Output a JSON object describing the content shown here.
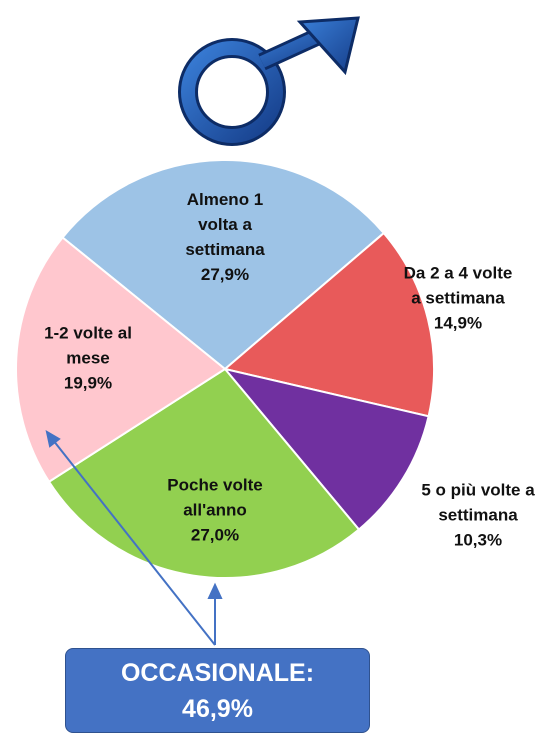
{
  "chart_data": {
    "type": "pie",
    "categories": [
      "Almeno 1 volta a settimana",
      "Da 2 a 4 volte a settimana",
      "5 o più volte a settimana",
      "Poche volte all'anno",
      "1-2 volte al mese"
    ],
    "values": [
      27.9,
      14.9,
      10.3,
      27.0,
      19.9
    ],
    "value_labels": [
      "27,9%",
      "14,9%",
      "10,3%",
      "27,0%",
      "19,9%"
    ],
    "colors": [
      "#9dc3e6",
      "#e85a5a",
      "#7030a0",
      "#92d050",
      "#ffc7ce"
    ],
    "annotation": {
      "label": "OCCASIONALE:",
      "value": "46,9%"
    }
  }
}
